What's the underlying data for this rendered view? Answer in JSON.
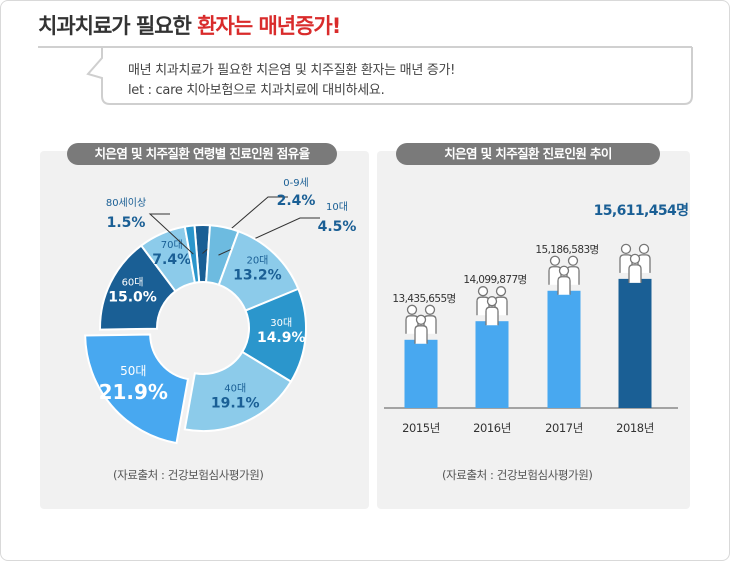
{
  "header": {
    "title_part1": "치과치료가 필요한 ",
    "title_part2": "환자는 매년증가!",
    "subtitle_line1": "매년 치과치료가 필요한 치은염 및 치주질환 환자는 매년 증가!",
    "subtitle_line2": "let : care 치아보험으로 치과치료에 대비하세요."
  },
  "left_panel": {
    "title": "치은염 및 치주질환 연령별 진료인원 점유율",
    "source": "(자료출처 : 건강보험심사평가원)"
  },
  "right_panel": {
    "title": "치은염 및 치주질환 진료인원 추이",
    "source": "(자료출처 : 건강보험심사평가원)"
  },
  "colors": {
    "accent_red": "#d92b2b",
    "dark_blue": "#1a5f95",
    "mid_blue": "#2b96cc",
    "light_blue": "#8ccbea",
    "bright_blue": "#48a8f0",
    "bar_blue": "#48a8f0",
    "bar_highlight": "#1a5f95"
  },
  "chart_data": [
    {
      "type": "pie",
      "title": "치은염 및 치주질환 연령별 진료인원 점유율",
      "slices": [
        {
          "label": "0-9세",
          "value": 2.4,
          "display": "2.4%",
          "color": "#1a5f95"
        },
        {
          "label": "10대",
          "value": 4.5,
          "display": "4.5%",
          "color": "#6dbbe0"
        },
        {
          "label": "20대",
          "value": 13.2,
          "display": "13.2%",
          "color": "#8ccbea"
        },
        {
          "label": "30대",
          "value": 14.9,
          "display": "14.9%",
          "color": "#2b96cc"
        },
        {
          "label": "40대",
          "value": 19.1,
          "display": "19.1%",
          "color": "#8ccbea"
        },
        {
          "label": "50대",
          "value": 21.9,
          "display": "21.9%",
          "color": "#48a8f0"
        },
        {
          "label": "60대",
          "value": 15.0,
          "display": "15.0%",
          "color": "#1a5f95"
        },
        {
          "label": "70대",
          "value": 7.4,
          "display": "7.4%",
          "color": "#8ccbea"
        },
        {
          "label": "80세이상",
          "value": 1.5,
          "display": "1.5%",
          "color": "#2b96cc"
        }
      ]
    },
    {
      "type": "bar",
      "title": "치은염 및 치주질환 진료인원 추이",
      "categories": [
        "2015년",
        "2016년",
        "2017년",
        "2018년"
      ],
      "values": [
        13435655,
        14099877,
        15186583,
        15611454
      ],
      "value_labels": [
        "13,435,655명",
        "14,099,877명",
        "15,186,583명",
        "15,611,454명"
      ],
      "highlight_index": 3
    }
  ]
}
